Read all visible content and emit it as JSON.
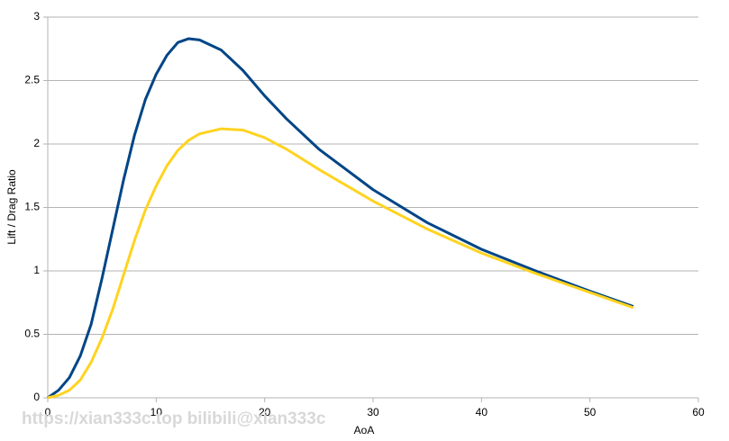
{
  "chart_data": {
    "type": "line",
    "x_label": "AoA",
    "y_label": "Lift / Drag Ratio",
    "watermark": "https://xian333c.top bilibili@xian333c",
    "x": [
      0,
      1,
      2,
      3,
      4,
      5,
      6,
      7,
      8,
      9,
      10,
      11,
      12,
      13,
      14,
      16,
      18,
      20,
      22,
      25,
      30,
      35,
      40,
      45,
      50,
      54
    ],
    "series": [
      {
        "color": "#004586",
        "values": [
          0,
          0.06,
          0.16,
          0.33,
          0.58,
          0.94,
          1.33,
          1.72,
          2.07,
          2.35,
          2.55,
          2.7,
          2.8,
          2.83,
          2.82,
          2.74,
          2.58,
          2.38,
          2.2,
          1.96,
          1.64,
          1.38,
          1.17,
          1.0,
          0.84,
          0.72
        ]
      },
      {
        "color": "#ffd320",
        "values": [
          0,
          0.02,
          0.06,
          0.14,
          0.28,
          0.47,
          0.7,
          0.97,
          1.24,
          1.48,
          1.67,
          1.83,
          1.95,
          2.03,
          2.08,
          2.12,
          2.11,
          2.05,
          1.96,
          1.8,
          1.55,
          1.33,
          1.14,
          0.98,
          0.83,
          0.71
        ]
      }
    ],
    "xlim": [
      0,
      60
    ],
    "xticks": [
      0,
      10,
      20,
      30,
      40,
      50,
      60
    ],
    "ylim": [
      0,
      3
    ],
    "yticks": [
      0,
      0.5,
      1,
      1.5,
      2,
      2.5,
      3
    ],
    "grid": true
  }
}
